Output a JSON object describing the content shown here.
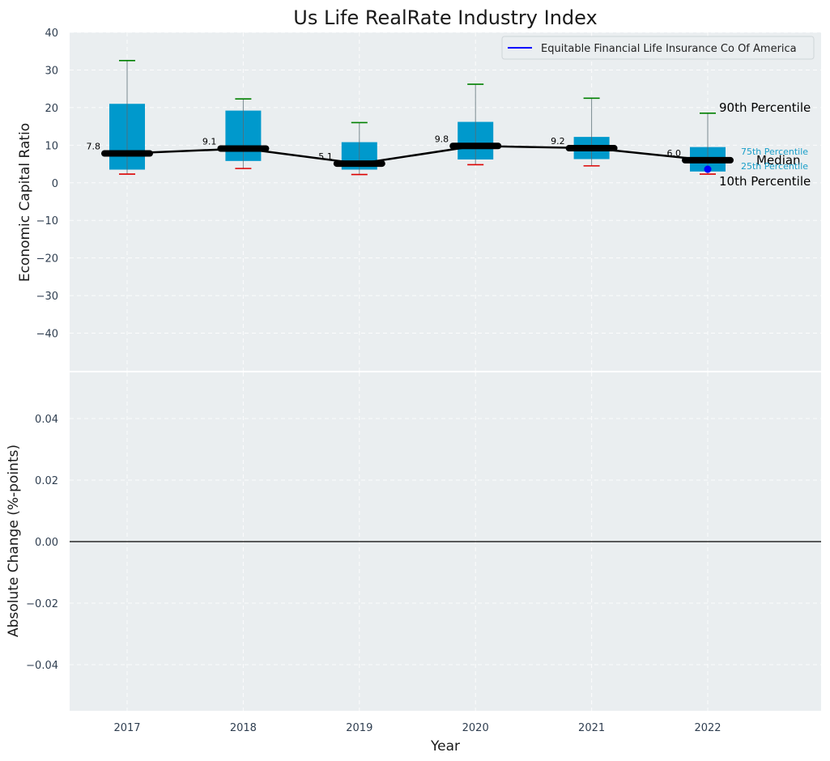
{
  "chart_data": [
    {
      "type": "box",
      "title": "Us Life RealRate Industry Index",
      "ylabel": "Economic Capital Ratio",
      "ylim": [
        -50,
        40
      ],
      "yticks": [
        40,
        30,
        20,
        10,
        0,
        -10,
        -20,
        -30,
        -40
      ],
      "grid": true,
      "categories": [
        "2017",
        "2018",
        "2019",
        "2020",
        "2021",
        "2022"
      ],
      "series": [
        {
          "name": "90th Percentile",
          "values": [
            32.5,
            22.3,
            16.0,
            26.2,
            22.5,
            18.5
          ]
        },
        {
          "name": "75th Percentile",
          "values": [
            21.0,
            19.2,
            10.8,
            16.2,
            12.2,
            9.5
          ]
        },
        {
          "name": "Median",
          "values": [
            7.8,
            9.1,
            5.1,
            9.8,
            9.2,
            6.0
          ]
        },
        {
          "name": "25th Percentile",
          "values": [
            3.5,
            5.8,
            3.5,
            6.2,
            6.3,
            3.0
          ]
        },
        {
          "name": "10th Percentile",
          "values": [
            2.3,
            3.8,
            2.2,
            4.8,
            4.5,
            2.3
          ]
        }
      ],
      "median_labels": [
        "7.8",
        "9.1",
        "5.1",
        "9.8",
        "9.2",
        "6.0"
      ],
      "company": {
        "name": "Equitable Financial Life Insurance Co Of America",
        "points": [
          {
            "x": "2022",
            "y": 3.6
          }
        ]
      },
      "annotations": {
        "p90": "90th Percentile",
        "p75": "75th Percentile",
        "median": "Median",
        "p25": "25th Percentile",
        "p10": "10th Percentile"
      },
      "legend": {
        "placement": "top-right",
        "entries": [
          "Equitable Financial Life Insurance Co Of America"
        ]
      },
      "colors": {
        "background": "#eaeef0",
        "box": "#0099cc",
        "median_line": "#000000",
        "whisker_top": "#008000",
        "whisker_bottom": "#dd0000",
        "company": "#0000ff",
        "annotation_blue": "#1a9fc9"
      }
    },
    {
      "type": "line",
      "ylabel": "Absolute Change (%-points)",
      "xlabel": "Year",
      "ylim": [
        -0.055,
        0.055
      ],
      "yticks": [
        0.04,
        0.02,
        0.0,
        -0.02,
        -0.04
      ],
      "ytick_labels": [
        "0.04",
        "0.02",
        "0.00",
        "−0.02",
        "−0.04"
      ],
      "grid": true,
      "categories": [
        "2017",
        "2018",
        "2019",
        "2020",
        "2021",
        "2022"
      ],
      "reference_line": 0
    }
  ]
}
